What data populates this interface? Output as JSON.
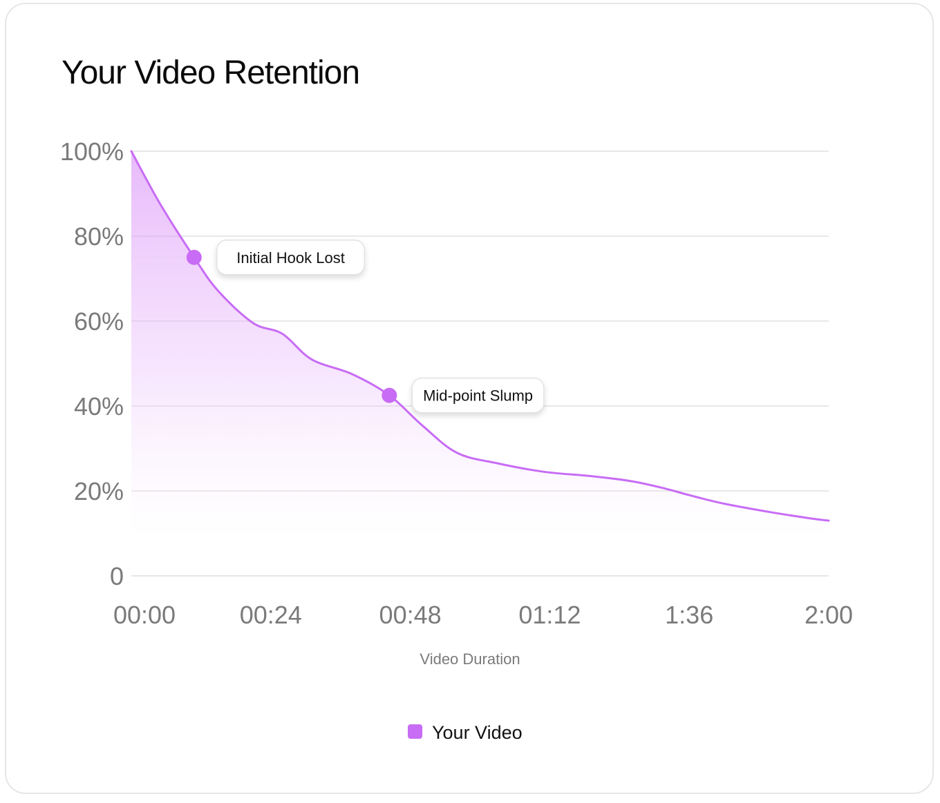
{
  "chart_data": {
    "type": "area",
    "title": "Your Video Retention",
    "xlabel": "Video Duration",
    "ylabel": "",
    "x_tick_labels": [
      "00:00",
      "00:24",
      "00:48",
      "01:12",
      "1:36",
      "2:00"
    ],
    "x_tick_values": [
      0,
      24,
      48,
      72,
      96,
      120
    ],
    "xlim": [
      0,
      120
    ],
    "y_tick_labels": [
      "100%",
      "80%",
      "60%",
      "40%",
      "20%",
      "0"
    ],
    "y_tick_values": [
      100,
      80,
      60,
      40,
      20,
      0
    ],
    "ylim": [
      0,
      100
    ],
    "grid": true,
    "legend_position": "bottom-center",
    "series": [
      {
        "name": "Your Video",
        "color": "#c86cf5",
        "x": [
          0,
          5,
          10.8,
          15,
          21,
          26,
          31,
          38,
          44.4,
          50,
          56,
          63,
          71,
          79,
          86,
          92,
          96,
          102,
          110,
          117,
          120
        ],
        "y": [
          100,
          87.5,
          75,
          67,
          59.5,
          57,
          51,
          47.5,
          42.5,
          35.5,
          29,
          26.5,
          24.5,
          23.5,
          22.3,
          20.5,
          19,
          17,
          15,
          13.5,
          13
        ]
      }
    ],
    "annotations": [
      {
        "text": "Initial Hook Lost",
        "x": 10.8,
        "y": 75
      },
      {
        "text": "Mid-point Slump",
        "x": 44.4,
        "y": 42.5
      }
    ]
  }
}
